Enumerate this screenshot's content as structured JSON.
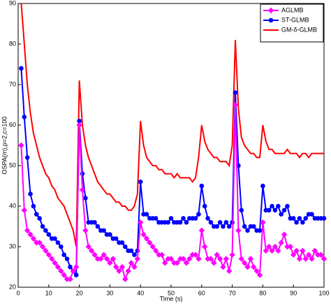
{
  "chart_data": {
    "type": "line",
    "x_label": "Time (s)",
    "y_label": "OSPA(m),p=2,c=100",
    "x": [
      1,
      2,
      3,
      4,
      5,
      6,
      7,
      8,
      9,
      10,
      11,
      12,
      13,
      14,
      15,
      16,
      17,
      18,
      19,
      20,
      21,
      22,
      23,
      24,
      25,
      26,
      27,
      28,
      29,
      30,
      31,
      32,
      33,
      34,
      35,
      36,
      37,
      38,
      39,
      40,
      41,
      42,
      43,
      44,
      45,
      46,
      47,
      48,
      49,
      50,
      51,
      52,
      53,
      54,
      55,
      56,
      57,
      58,
      59,
      60,
      61,
      62,
      63,
      64,
      65,
      66,
      67,
      68,
      69,
      70,
      71,
      72,
      73,
      74,
      75,
      76,
      77,
      78,
      79,
      80,
      81,
      82,
      83,
      84,
      85,
      86,
      87,
      88,
      89,
      90,
      91,
      92,
      93,
      94,
      95,
      96,
      97,
      98,
      99,
      100
    ],
    "series": [
      {
        "name": "AGLMB",
        "color": "#ff00ff",
        "marker": "diamond",
        "values": [
          55,
          39,
          34,
          33,
          32,
          31,
          31,
          30,
          29,
          28,
          27,
          26,
          25,
          24,
          23,
          22,
          22,
          24,
          25,
          60,
          44,
          34,
          30,
          29,
          28,
          27,
          27,
          28,
          27,
          26,
          27,
          25,
          24,
          25,
          22,
          24,
          26,
          25,
          27,
          36,
          33,
          32,
          31,
          30,
          29,
          28,
          28,
          26,
          27,
          27,
          26,
          26,
          27,
          27,
          26,
          27,
          28,
          28,
          27,
          34,
          30,
          27,
          27,
          26,
          28,
          27,
          25,
          27,
          24,
          28,
          65,
          34,
          27,
          26,
          25,
          27,
          25,
          24,
          23,
          36,
          29,
          30,
          29,
          30,
          29,
          31,
          33,
          30,
          30,
          28,
          29,
          27,
          29,
          27,
          28,
          27,
          29,
          28,
          28,
          27
        ]
      },
      {
        "name": "ST-GLMB",
        "color": "#0000ff",
        "marker": "circle",
        "values": [
          74,
          62,
          52,
          43,
          40,
          38,
          37,
          35,
          34,
          33,
          32,
          32,
          31,
          30,
          28,
          27,
          25,
          24,
          23,
          61,
          48,
          42,
          36,
          36,
          36,
          35,
          34,
          34,
          33,
          33,
          32,
          32,
          31,
          31,
          30,
          29,
          29,
          28,
          29,
          46,
          38,
          38,
          37,
          37,
          37,
          36,
          36,
          36,
          36,
          37,
          36,
          36,
          36,
          37,
          36,
          37,
          37,
          37,
          38,
          45,
          40,
          37,
          36,
          35,
          35,
          36,
          35,
          36,
          35,
          36,
          68,
          50,
          39,
          35,
          34,
          35,
          35,
          34,
          34,
          45,
          39,
          39,
          40,
          39,
          40,
          38,
          39,
          40,
          37,
          37,
          36,
          37,
          36,
          37,
          38,
          38,
          37,
          37,
          37,
          37
        ]
      },
      {
        "name": "GM-δ-GLMB",
        "color": "#ff0000",
        "marker": "none",
        "values": [
          90,
          80,
          70,
          63,
          58,
          55,
          52,
          50,
          48,
          47,
          45,
          44,
          42,
          41,
          40,
          38,
          36,
          34,
          30,
          71,
          60,
          55,
          52,
          50,
          48,
          46,
          45,
          44,
          43,
          43,
          42,
          41,
          41,
          40,
          40,
          39,
          39,
          40,
          43,
          61,
          55,
          52,
          51,
          50,
          50,
          49,
          49,
          48,
          48,
          48,
          47,
          48,
          47,
          47,
          47,
          47,
          46,
          47,
          52,
          60,
          56,
          54,
          53,
          52,
          52,
          51,
          51,
          51,
          50,
          55,
          81,
          64,
          57,
          55,
          54,
          53,
          53,
          52,
          52,
          60,
          56,
          54,
          54,
          53,
          53,
          53,
          53,
          54,
          53,
          53,
          53,
          52,
          53,
          53,
          52,
          53,
          53,
          53,
          53,
          53
        ]
      }
    ],
    "xlim": [
      0,
      100
    ],
    "xticks": [
      0,
      10,
      20,
      30,
      40,
      50,
      60,
      70,
      80,
      90,
      100
    ],
    "ylim": [
      20,
      90
    ],
    "yticks": [
      20,
      30,
      40,
      50,
      60,
      70,
      80,
      90
    ],
    "legend": "upper right"
  }
}
